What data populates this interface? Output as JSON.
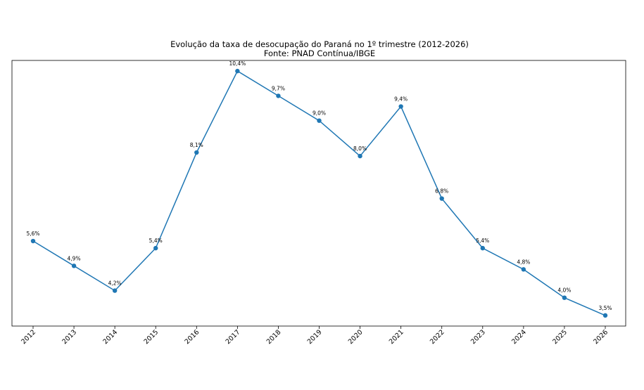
{
  "chart_data": {
    "type": "line",
    "title": "Evolução da taxa de desocupação do Paraná no 1º trimestre (2012-2026)",
    "subtitle": "Fonte: PNAD Contínua/IBGE",
    "categories": [
      "2012",
      "2013",
      "2014",
      "2015",
      "2016",
      "2017",
      "2018",
      "2019",
      "2020",
      "2021",
      "2022",
      "2023",
      "2024",
      "2025",
      "2026"
    ],
    "series": [
      {
        "values": [
          5.6,
          4.9,
          4.2,
          5.4,
          8.1,
          10.4,
          9.7,
          9.0,
          8.0,
          9.4,
          6.8,
          5.4,
          4.8,
          4.0,
          3.5
        ],
        "labels": [
          "5,6%",
          "4,9%",
          "4,2%",
          "5,4%",
          "8,1%",
          "10,4%",
          "9,7%",
          "9,0%",
          "8,0%",
          "9,4%",
          "6,8%",
          "5,4%",
          "4,8%",
          "4,0%",
          "3,5%"
        ]
      }
    ],
    "xlabel": "",
    "ylabel": "",
    "ylim": [
      3.2,
      10.7
    ],
    "y_ticks_visible": false,
    "grid": false,
    "line_color": "#1f77b4",
    "marker": "circle"
  }
}
